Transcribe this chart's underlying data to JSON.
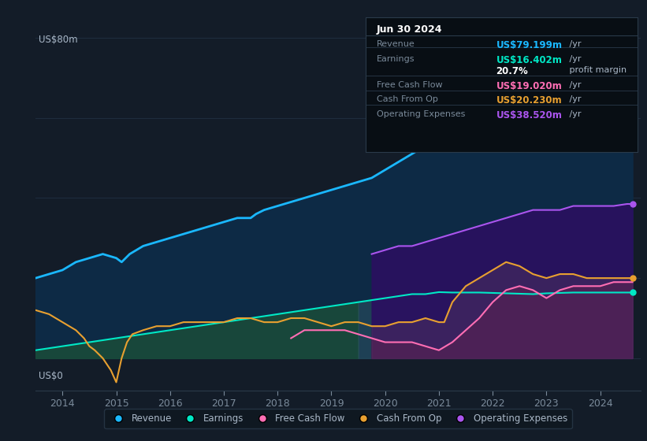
{
  "bg_color": "#131c28",
  "plot_bg_color": "#131c28",
  "ylabel": "US$80m",
  "y0_label": "US$0",
  "legend_items": [
    {
      "label": "Revenue",
      "color": "#1ab8ff"
    },
    {
      "label": "Earnings",
      "color": "#00e8c6"
    },
    {
      "label": "Free Cash Flow",
      "color": "#ff6eb4"
    },
    {
      "label": "Cash From Op",
      "color": "#e8a030"
    },
    {
      "label": "Operating Expenses",
      "color": "#aa55ee"
    }
  ],
  "info_box": {
    "title": "Jun 30 2024",
    "rows": [
      {
        "label": "Revenue",
        "value": "US$79.199m",
        "suffix": " /yr",
        "value_color": "#1ab8ff"
      },
      {
        "label": "Earnings",
        "value": "US$16.402m",
        "suffix": " /yr",
        "value_color": "#00e8c6"
      },
      {
        "label": "",
        "value": "20.7%",
        "suffix": " profit margin",
        "value_color": "#ffffff"
      },
      {
        "label": "Free Cash Flow",
        "value": "US$19.020m",
        "suffix": " /yr",
        "value_color": "#ff6eb4"
      },
      {
        "label": "Cash From Op",
        "value": "US$20.230m",
        "suffix": " /yr",
        "value_color": "#e8a030"
      },
      {
        "label": "Operating Expenses",
        "value": "US$38.520m",
        "suffix": " /yr",
        "value_color": "#aa55ee"
      }
    ]
  },
  "xmin": 2013.5,
  "xmax": 2024.75,
  "ymin": -8,
  "ymax": 85,
  "revenue_x": [
    2013.5,
    2013.75,
    2014.0,
    2014.25,
    2014.5,
    2014.75,
    2015.0,
    2015.1,
    2015.25,
    2015.5,
    2015.75,
    2016.0,
    2016.25,
    2016.5,
    2016.75,
    2017.0,
    2017.25,
    2017.5,
    2017.6,
    2017.75,
    2018.0,
    2018.25,
    2018.5,
    2018.75,
    2019.0,
    2019.25,
    2019.5,
    2019.75,
    2020.0,
    2020.25,
    2020.5,
    2020.75,
    2021.0,
    2021.25,
    2021.5,
    2021.75,
    2022.0,
    2022.25,
    2022.5,
    2022.75,
    2023.0,
    2023.25,
    2023.5,
    2023.75,
    2024.0,
    2024.25,
    2024.5,
    2024.6
  ],
  "revenue_y": [
    20,
    21,
    22,
    24,
    25,
    26,
    25,
    24,
    26,
    28,
    29,
    30,
    31,
    32,
    33,
    34,
    35,
    35,
    36,
    37,
    38,
    39,
    40,
    41,
    42,
    43,
    44,
    45,
    47,
    49,
    51,
    53,
    54,
    56,
    59,
    62,
    63,
    65,
    67,
    66,
    67,
    69,
    71,
    72,
    73,
    75,
    77,
    79
  ],
  "earnings_x": [
    2013.5,
    2013.75,
    2014.0,
    2014.25,
    2014.5,
    2014.75,
    2015.0,
    2015.25,
    2015.5,
    2015.75,
    2016.0,
    2016.25,
    2016.5,
    2016.75,
    2017.0,
    2017.25,
    2017.5,
    2017.75,
    2018.0,
    2018.25,
    2018.5,
    2018.75,
    2019.0,
    2019.25,
    2019.5,
    2019.75,
    2020.0,
    2020.25,
    2020.5,
    2020.75,
    2021.0,
    2021.25,
    2021.5,
    2021.75,
    2022.0,
    2022.25,
    2022.5,
    2022.75,
    2023.0,
    2023.25,
    2023.5,
    2023.75,
    2024.0,
    2024.25,
    2024.5,
    2024.6
  ],
  "earnings_y": [
    2,
    2.5,
    3,
    3.5,
    4,
    4.5,
    5,
    5.5,
    6,
    6.5,
    7,
    7.5,
    8,
    8.5,
    9,
    9.5,
    10,
    10.5,
    11,
    11.5,
    12,
    12.5,
    13,
    13.5,
    14,
    14.5,
    15,
    15.5,
    16,
    16,
    16.5,
    16.4,
    16.4,
    16.4,
    16.3,
    16.2,
    16.1,
    16.0,
    16.2,
    16.3,
    16.4,
    16.4,
    16.4,
    16.4,
    16.4,
    16.4
  ],
  "cop_x": [
    2013.5,
    2013.75,
    2014.0,
    2014.25,
    2014.4,
    2014.5,
    2014.6,
    2014.75,
    2014.9,
    2015.0,
    2015.1,
    2015.2,
    2015.3,
    2015.5,
    2015.75,
    2016.0,
    2016.25,
    2016.5,
    2016.75,
    2017.0,
    2017.25,
    2017.5,
    2017.75,
    2018.0,
    2018.25,
    2018.5,
    2018.75,
    2019.0,
    2019.25,
    2019.5,
    2019.75,
    2020.0,
    2020.25,
    2020.5,
    2020.75,
    2021.0,
    2021.1,
    2021.25,
    2021.5,
    2021.75,
    2022.0,
    2022.25,
    2022.5,
    2022.75,
    2023.0,
    2023.25,
    2023.5,
    2023.75,
    2024.0,
    2024.25,
    2024.5,
    2024.6
  ],
  "cop_y": [
    12,
    11,
    9,
    7,
    5,
    3,
    2,
    0,
    -3,
    -6,
    0,
    4,
    6,
    7,
    8,
    8,
    9,
    9,
    9,
    9,
    10,
    10,
    9,
    9,
    10,
    10,
    9,
    8,
    9,
    9,
    8,
    8,
    9,
    9,
    10,
    9,
    9,
    14,
    18,
    20,
    22,
    24,
    23,
    21,
    20,
    21,
    21,
    20,
    20,
    20,
    20,
    20
  ],
  "fcf_x": [
    2018.25,
    2018.5,
    2018.75,
    2019.0,
    2019.25,
    2019.5,
    2019.75,
    2020.0,
    2020.25,
    2020.5,
    2020.75,
    2021.0,
    2021.25,
    2021.5,
    2021.75,
    2022.0,
    2022.25,
    2022.5,
    2022.75,
    2023.0,
    2023.25,
    2023.5,
    2023.75,
    2024.0,
    2024.25,
    2024.5,
    2024.6
  ],
  "fcf_y": [
    5,
    7,
    7,
    7,
    7,
    6,
    5,
    4,
    4,
    4,
    3,
    2,
    4,
    7,
    10,
    14,
    17,
    18,
    17,
    15,
    17,
    18,
    18,
    18,
    19,
    19,
    19
  ],
  "opex_x": [
    2019.75,
    2020.0,
    2020.25,
    2020.5,
    2020.75,
    2021.0,
    2021.25,
    2021.5,
    2021.75,
    2022.0,
    2022.25,
    2022.5,
    2022.75,
    2023.0,
    2023.25,
    2023.5,
    2023.75,
    2024.0,
    2024.25,
    2024.5,
    2024.6
  ],
  "opex_y": [
    26,
    27,
    28,
    28,
    29,
    30,
    31,
    32,
    33,
    34,
    35,
    36,
    37,
    37,
    37,
    38,
    38,
    38,
    38,
    38.5,
    38.5
  ],
  "earn_shade_end": 2019.5,
  "opex_shade_start": 2019.75
}
